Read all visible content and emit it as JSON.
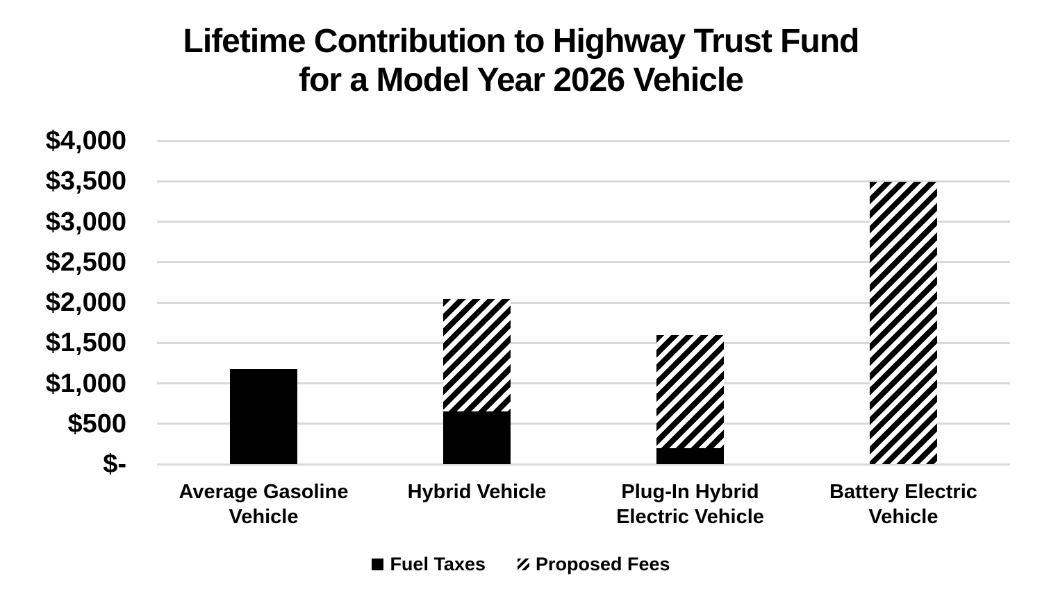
{
  "title": {
    "line1": "Lifetime Contribution to Highway Trust Fund",
    "line2": "for a Model Year 2026 Vehicle"
  },
  "chart_data": {
    "type": "bar",
    "stacked": true,
    "title": "Lifetime Contribution to Highway Trust Fund for a Model Year 2026 Vehicle",
    "categories": [
      "Average Gasoline\nVehicle",
      "Hybrid Vehicle",
      "Plug-In Hybrid\nElectric Vehicle",
      "Battery Electric\nVehicle"
    ],
    "series": [
      {
        "name": "Fuel Taxes",
        "style": "solid",
        "values": [
          1175,
          650,
          200,
          0
        ]
      },
      {
        "name": "Proposed Fees",
        "style": "hatched",
        "values": [
          0,
          1390,
          1400,
          3490
        ]
      }
    ],
    "totals": [
      1175,
      2040,
      1600,
      3490
    ],
    "xlabel": "",
    "ylabel": "",
    "ylim": [
      0,
      4000
    ],
    "ytick_step": 500,
    "ytick_labels": [
      "$-",
      "$500",
      "$1,000",
      "$1,500",
      "$2,000",
      "$2,500",
      "$3,000",
      "$3,500",
      "$4,000"
    ],
    "grid": true,
    "legend_position": "bottom",
    "colors": {
      "bar": "#000000",
      "hatch_foreground": "#000000",
      "hatch_background": "#ffffff",
      "grid": "#d9d9d9",
      "background": "#ffffff",
      "text": "#000000"
    }
  },
  "legend": {
    "items": [
      {
        "label": "Fuel Taxes",
        "style": "solid"
      },
      {
        "label": "Proposed Fees",
        "style": "hatched"
      }
    ]
  }
}
